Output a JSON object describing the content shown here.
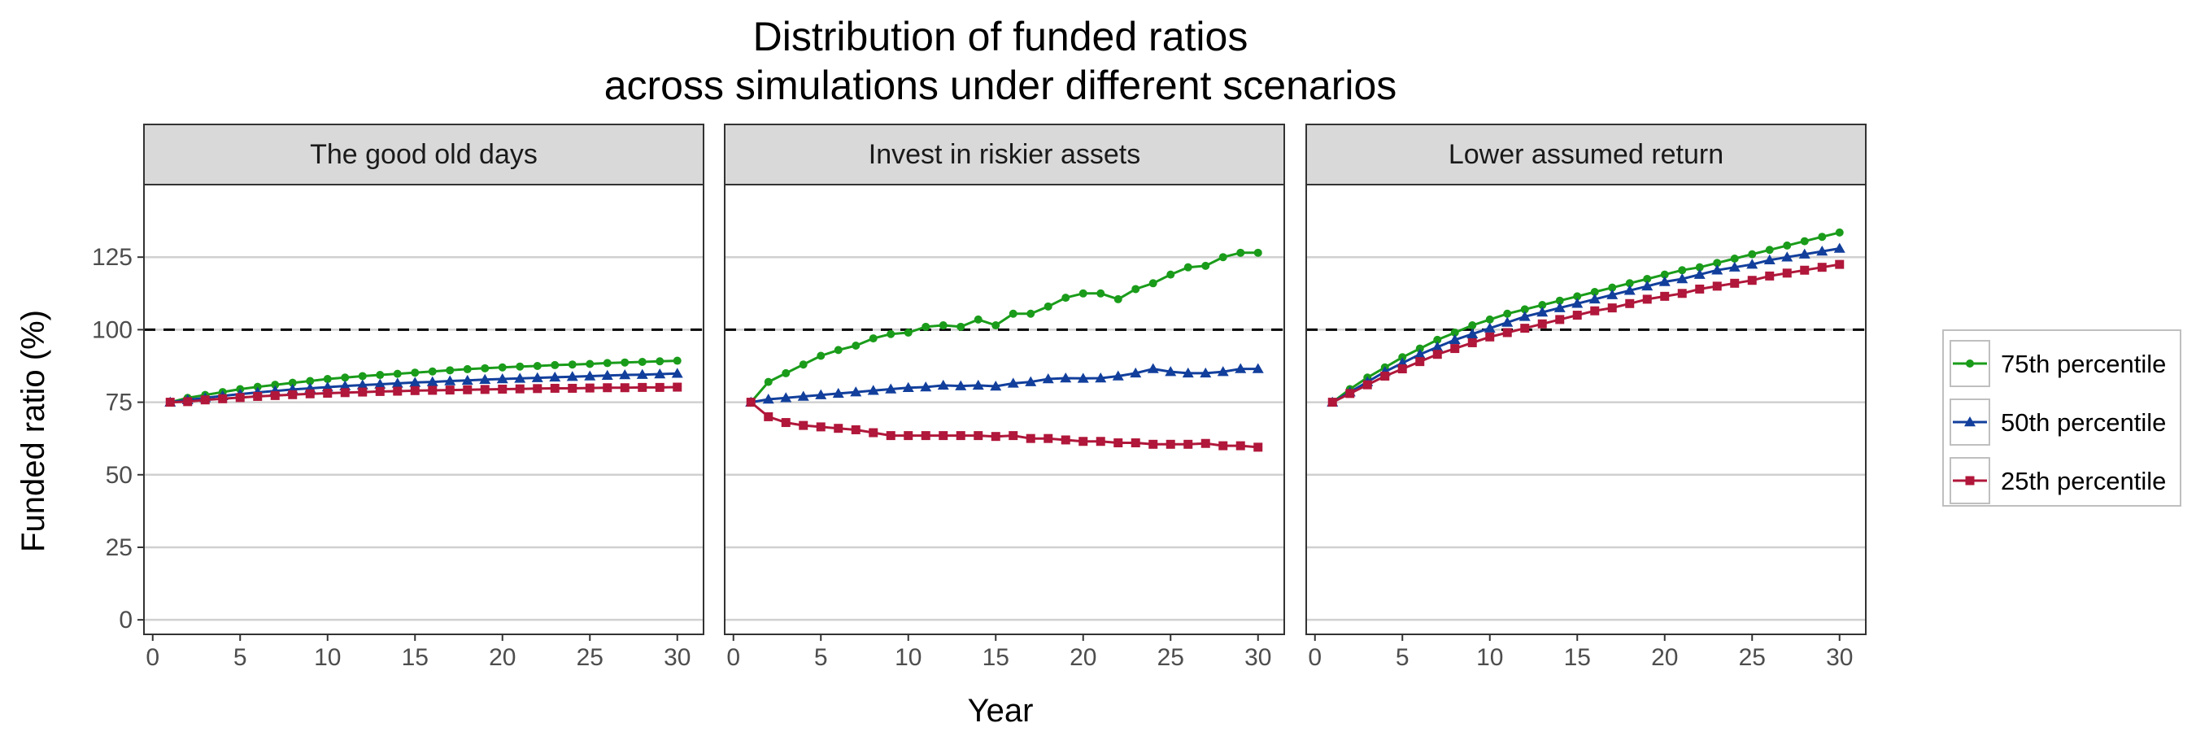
{
  "chart": {
    "title_lines": [
      "Distribution of funded ratios",
      "across simulations under different scenarios"
    ],
    "xlabel": "Year",
    "ylabel": "Funded ratio (%)",
    "legend_position": "right"
  },
  "chart_data": {
    "type": "line",
    "title": "Distribution of funded ratios across simulations under different scenarios",
    "xlabel": "Year",
    "ylabel": "Funded ratio (%)",
    "xlim": [
      -0.5,
      31.5
    ],
    "ylim": [
      -5,
      150
    ],
    "xticks": [
      0,
      5,
      10,
      15,
      20,
      25,
      30
    ],
    "yticks": [
      0,
      25,
      50,
      75,
      100,
      125
    ],
    "grid": "horizontal major",
    "reference_line": {
      "y": 100,
      "style": "dashed",
      "color": "#000000"
    },
    "legend_placement": "right",
    "series_styles": [
      {
        "name": "75th percentile",
        "color": "#1a9c1a",
        "marker": "circle"
      },
      {
        "name": "50th percentile",
        "color": "#123f9c",
        "marker": "triangle"
      },
      {
        "name": "25th percentile",
        "color": "#b0173a",
        "marker": "square"
      }
    ],
    "x": [
      1,
      2,
      3,
      4,
      5,
      6,
      7,
      8,
      9,
      10,
      11,
      12,
      13,
      14,
      15,
      16,
      17,
      18,
      19,
      20,
      21,
      22,
      23,
      24,
      25,
      26,
      27,
      28,
      29,
      30
    ],
    "panels": [
      {
        "label": "The good old days",
        "series": [
          {
            "name": "75th percentile",
            "values": [
              75,
              76.5,
              77.5,
              78.5,
              79.5,
              80.3,
              81,
              81.7,
              82.3,
              83,
              83.5,
              84,
              84.4,
              84.8,
              85.2,
              85.6,
              86,
              86.4,
              86.7,
              87,
              87.3,
              87.5,
              87.8,
              88,
              88.2,
              88.5,
              88.7,
              88.9,
              89.1,
              89.3
            ]
          },
          {
            "name": "50th percentile",
            "values": [
              75,
              75.8,
              76.5,
              77.2,
              77.8,
              78.4,
              78.9,
              79.4,
              79.8,
              80.2,
              80.6,
              80.9,
              81.2,
              81.5,
              81.8,
              82,
              82.3,
              82.5,
              82.8,
              83,
              83.2,
              83.4,
              83.6,
              83.8,
              84,
              84.2,
              84.4,
              84.5,
              84.7,
              84.9
            ]
          },
          {
            "name": "25th percentile",
            "values": [
              75,
              75.2,
              75.8,
              76.2,
              76.6,
              77,
              77.3,
              77.6,
              77.9,
              78.1,
              78.3,
              78.5,
              78.7,
              78.8,
              79,
              79.1,
              79.2,
              79.3,
              79.4,
              79.5,
              79.6,
              79.7,
              79.8,
              79.8,
              79.9,
              80,
              80,
              80.1,
              80.1,
              80.2
            ]
          }
        ]
      },
      {
        "label": "Invest in riskier assets",
        "series": [
          {
            "name": "75th percentile",
            "values": [
              75,
              82,
              85,
              88,
              91,
              93,
              94.5,
              97,
              98.5,
              99,
              101,
              101.5,
              101,
              103.5,
              101.5,
              105.5,
              105.5,
              108,
              111,
              112.5,
              112.5,
              110.5,
              114,
              116,
              119,
              121.5,
              122,
              125,
              126.5,
              126.5
            ]
          },
          {
            "name": "50th percentile",
            "values": [
              75,
              76,
              76.5,
              77,
              77.5,
              78,
              78.5,
              79,
              79.5,
              80,
              80.2,
              80.8,
              80.6,
              80.8,
              80.5,
              81.5,
              82,
              83,
              83.3,
              83.2,
              83.3,
              84,
              85,
              86.5,
              85.5,
              85,
              85,
              85.5,
              86.5,
              86.5
            ]
          },
          {
            "name": "25th percentile",
            "values": [
              75,
              70,
              68,
              67,
              66.5,
              66,
              65.5,
              64.5,
              63.5,
              63.5,
              63.5,
              63.5,
              63.5,
              63.5,
              63.2,
              63.5,
              62.5,
              62.5,
              62,
              61.5,
              61.5,
              61,
              61,
              60.5,
              60.5,
              60.5,
              60.8,
              60,
              60,
              59.5
            ]
          }
        ]
      },
      {
        "label": "Lower assumed return",
        "series": [
          {
            "name": "75th percentile",
            "values": [
              75,
              79.5,
              83.5,
              87,
              90.5,
              93.5,
              96.5,
              99,
              101.5,
              103.5,
              105.5,
              107,
              108.5,
              110,
              111.5,
              113,
              114.5,
              116,
              117.5,
              119,
              120.5,
              121.5,
              123,
              124.5,
              126,
              127.5,
              129,
              130.5,
              132,
              133.5
            ]
          },
          {
            "name": "50th percentile",
            "values": [
              75,
              78.5,
              82,
              85.5,
              88.5,
              91.5,
              94,
              96.5,
              98.5,
              100.5,
              102.5,
              104.5,
              106,
              107.5,
              109,
              110.5,
              112,
              113.5,
              115,
              116.5,
              117.5,
              119,
              120.5,
              121.5,
              122.5,
              124,
              125,
              126,
              127,
              128
            ]
          },
          {
            "name": "25th percentile",
            "values": [
              75,
              78,
              81,
              84,
              86.5,
              89,
              91.5,
              93.5,
              95.5,
              97.5,
              99,
              100.5,
              102,
              103.5,
              105,
              106.5,
              107.5,
              109,
              110.5,
              111.5,
              112.5,
              114,
              115,
              116,
              117,
              118.5,
              119.5,
              120.5,
              121.5,
              122.5
            ]
          }
        ]
      }
    ]
  }
}
